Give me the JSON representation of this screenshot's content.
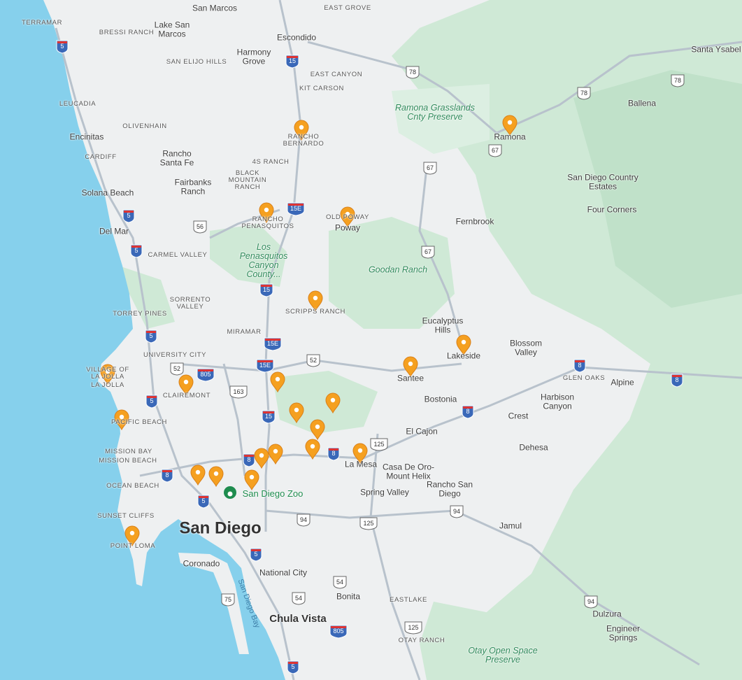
{
  "places": [
    "San Marcos",
    "EAST GROVE",
    "TERRAMAR",
    "BRESSI RANCH",
    "Lake San Marcos",
    "Escondido",
    "Harmony Grove",
    "SAN ELIJO HILLS",
    "EAST CANYON",
    "KIT CARSON",
    "Santa Ysabel",
    "Ramona Grasslands Cnty Preserve",
    "Ballena",
    "LEUCADIA",
    "OLIVENHAIN",
    "RANCHO BERNARDO",
    "Ramona",
    "Encinitas",
    "CARDIFF",
    "Rancho Santa Fe",
    "4S RANCH",
    "BLACK MOUNTAIN RANCH",
    "San Diego Country Estates",
    "Fairbanks Ranch",
    "Solana Beach",
    "Four Corners",
    "OLD POWAY",
    "Poway",
    "RANCHO PENASQUITOS",
    "Fernbrook",
    "Del Mar",
    "CARMEL VALLEY",
    "Los Penasquitos Canyon County...",
    "Goodan Ranch",
    "SORRENTO VALLEY",
    "TORREY PINES",
    "SCRIPPS RANCH",
    "Eucalyptus Hills",
    "MIRAMAR",
    "Blossom Valley",
    "UNIVERSITY CITY",
    "Lakeside",
    "VILLAGE OF LA JOLLA",
    "LA JOLLA",
    "Santee",
    "GLEN OAKS",
    "Alpine",
    "CLAIREMONT",
    "Harbison Canyon",
    "Bostonia",
    "PACIFIC BEACH",
    "Crest",
    "El Cajon",
    "Dehesa",
    "MISSION BAY",
    "MISSION BEACH",
    "La Mesa",
    "Casa De Oro-Mount Helix",
    "OCEAN BEACH",
    "Rancho San Diego",
    "San Diego Zoo",
    "Spring Valley",
    "SUNSET CLIFFS",
    "San Diego",
    "Jamul",
    "POINT LOMA",
    "Coronado",
    "National City",
    "San Diego Bay",
    "Bonita",
    "EASTLAKE",
    "Dulzura",
    "Chula Vista",
    "Engineer Springs",
    "OTAY RANCH",
    "Otay Open Space Preserve"
  ],
  "shields": [
    "5",
    "5",
    "5",
    "5",
    "5",
    "5",
    "5",
    "5",
    "15",
    "15",
    "15",
    "15E",
    "15E",
    "15E",
    "805",
    "805",
    "8",
    "8",
    "8",
    "8",
    "8",
    "8",
    "78",
    "78",
    "78",
    "67",
    "67",
    "67",
    "56",
    "52",
    "52",
    "163",
    "125",
    "125",
    "125",
    "94",
    "94",
    "94",
    "54",
    "54",
    "75"
  ]
}
